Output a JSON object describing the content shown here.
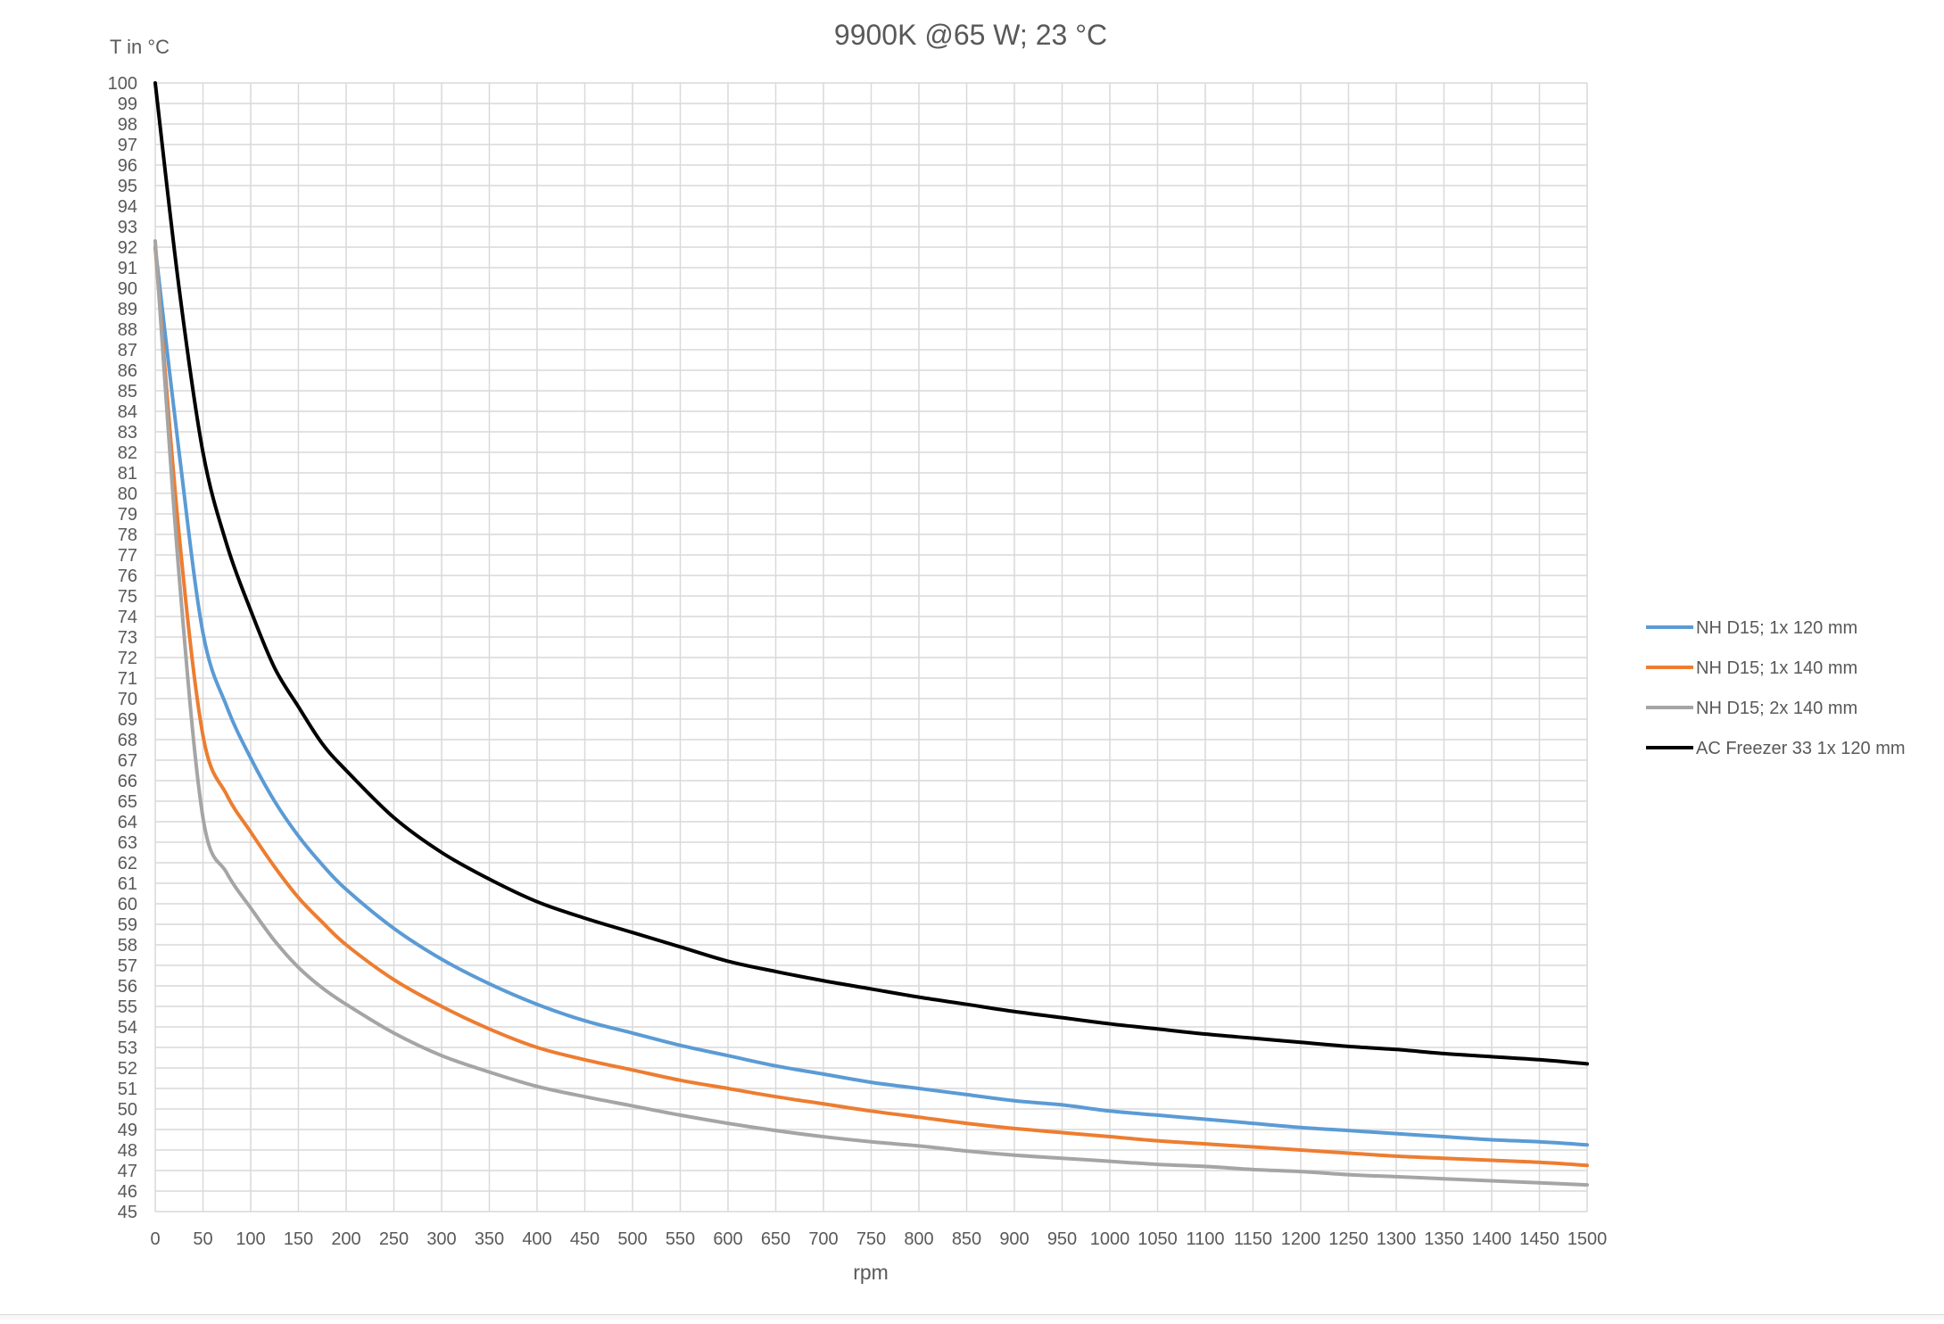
{
  "chart_data": {
    "type": "line",
    "title": "9900K @65 W; 23 °C",
    "xlabel": "rpm",
    "ylabel": "T in °C",
    "xlim": [
      0,
      1500
    ],
    "ylim": [
      45,
      100
    ],
    "x_tick_step": 50,
    "y_tick_step": 1,
    "grid": true,
    "legend_position": "right",
    "series": [
      {
        "name": "NH D15; 1x 120 mm",
        "color": "#5b9bd5",
        "points": [
          [
            0,
            92
          ],
          [
            25,
            82
          ],
          [
            50,
            73.2
          ],
          [
            75,
            69.6
          ],
          [
            100,
            67.1
          ],
          [
            125,
            65
          ],
          [
            150,
            63.3
          ],
          [
            175,
            61.9
          ],
          [
            200,
            60.7
          ],
          [
            250,
            58.8
          ],
          [
            300,
            57.3
          ],
          [
            350,
            56.1
          ],
          [
            400,
            55.1
          ],
          [
            450,
            54.3
          ],
          [
            500,
            53.7
          ],
          [
            550,
            53.1
          ],
          [
            600,
            52.6
          ],
          [
            650,
            52.1
          ],
          [
            700,
            51.7
          ],
          [
            750,
            51.3
          ],
          [
            800,
            51
          ],
          [
            850,
            50.7
          ],
          [
            900,
            50.4
          ],
          [
            950,
            50.2
          ],
          [
            1000,
            49.9
          ],
          [
            1050,
            49.7
          ],
          [
            1100,
            49.5
          ],
          [
            1150,
            49.3
          ],
          [
            1200,
            49.1
          ],
          [
            1250,
            48.95
          ],
          [
            1300,
            48.8
          ],
          [
            1350,
            48.65
          ],
          [
            1400,
            48.5
          ],
          [
            1450,
            48.4
          ],
          [
            1500,
            48.25
          ]
        ]
      },
      {
        "name": "NH D15; 1x 140 mm",
        "color": "#ed7d31",
        "points": [
          [
            0,
            92
          ],
          [
            25,
            78
          ],
          [
            50,
            68.2
          ],
          [
            75,
            65.3
          ],
          [
            100,
            63.5
          ],
          [
            125,
            61.8
          ],
          [
            150,
            60.3
          ],
          [
            175,
            59.1
          ],
          [
            200,
            58
          ],
          [
            250,
            56.3
          ],
          [
            300,
            55
          ],
          [
            350,
            53.9
          ],
          [
            400,
            53
          ],
          [
            450,
            52.4
          ],
          [
            500,
            51.9
          ],
          [
            550,
            51.4
          ],
          [
            600,
            51
          ],
          [
            650,
            50.6
          ],
          [
            700,
            50.25
          ],
          [
            750,
            49.9
          ],
          [
            800,
            49.6
          ],
          [
            850,
            49.3
          ],
          [
            900,
            49.05
          ],
          [
            950,
            48.85
          ],
          [
            1000,
            48.65
          ],
          [
            1050,
            48.45
          ],
          [
            1100,
            48.3
          ],
          [
            1150,
            48.15
          ],
          [
            1200,
            48
          ],
          [
            1250,
            47.85
          ],
          [
            1300,
            47.7
          ],
          [
            1350,
            47.6
          ],
          [
            1400,
            47.5
          ],
          [
            1450,
            47.4
          ],
          [
            1500,
            47.25
          ]
        ]
      },
      {
        "name": "NH D15; 2x 140 mm",
        "color": "#a5a5a5",
        "points": [
          [
            0,
            92.3
          ],
          [
            25,
            76
          ],
          [
            50,
            64.2
          ],
          [
            75,
            61.5
          ],
          [
            100,
            59.8
          ],
          [
            125,
            58.2
          ],
          [
            150,
            56.9
          ],
          [
            175,
            55.9
          ],
          [
            200,
            55.1
          ],
          [
            250,
            53.7
          ],
          [
            300,
            52.6
          ],
          [
            350,
            51.8
          ],
          [
            400,
            51.1
          ],
          [
            450,
            50.6
          ],
          [
            500,
            50.15
          ],
          [
            550,
            49.7
          ],
          [
            600,
            49.3
          ],
          [
            650,
            48.95
          ],
          [
            700,
            48.65
          ],
          [
            750,
            48.4
          ],
          [
            800,
            48.2
          ],
          [
            850,
            47.95
          ],
          [
            900,
            47.75
          ],
          [
            950,
            47.6
          ],
          [
            1000,
            47.45
          ],
          [
            1050,
            47.3
          ],
          [
            1100,
            47.2
          ],
          [
            1150,
            47.05
          ],
          [
            1200,
            46.95
          ],
          [
            1250,
            46.8
          ],
          [
            1300,
            46.7
          ],
          [
            1350,
            46.6
          ],
          [
            1400,
            46.5
          ],
          [
            1450,
            46.4
          ],
          [
            1500,
            46.3
          ]
        ]
      },
      {
        "name": "AC Freezer 33 1x 120 mm",
        "color": "#000000",
        "points": [
          [
            0,
            100
          ],
          [
            25,
            90
          ],
          [
            50,
            82
          ],
          [
            75,
            77.5
          ],
          [
            100,
            74.3
          ],
          [
            125,
            71.5
          ],
          [
            150,
            69.6
          ],
          [
            175,
            67.8
          ],
          [
            200,
            66.5
          ],
          [
            250,
            64.2
          ],
          [
            300,
            62.5
          ],
          [
            350,
            61.2
          ],
          [
            400,
            60.1
          ],
          [
            450,
            59.3
          ],
          [
            500,
            58.6
          ],
          [
            550,
            57.9
          ],
          [
            600,
            57.2
          ],
          [
            650,
            56.7
          ],
          [
            700,
            56.25
          ],
          [
            750,
            55.85
          ],
          [
            800,
            55.45
          ],
          [
            850,
            55.1
          ],
          [
            900,
            54.75
          ],
          [
            950,
            54.45
          ],
          [
            1000,
            54.15
          ],
          [
            1050,
            53.9
          ],
          [
            1100,
            53.65
          ],
          [
            1150,
            53.45
          ],
          [
            1200,
            53.25
          ],
          [
            1250,
            53.05
          ],
          [
            1300,
            52.9
          ],
          [
            1350,
            52.7
          ],
          [
            1400,
            52.55
          ],
          [
            1450,
            52.4
          ],
          [
            1500,
            52.2
          ]
        ]
      }
    ]
  }
}
